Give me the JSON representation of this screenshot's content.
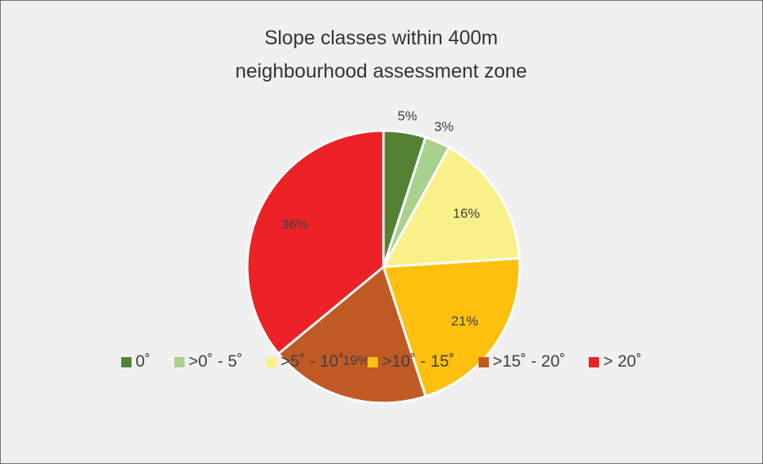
{
  "chart_data": {
    "type": "pie",
    "title": "Slope classes within 400m neighbourhood assessment zone",
    "categories": [
      "0˚",
      ">0˚ - 5˚",
      ">5˚ - 10˚",
      ">10˚ - 15˚",
      ">15˚ - 20˚",
      "> 20˚"
    ],
    "values": [
      5,
      3,
      16,
      21,
      19,
      36
    ],
    "value_labels": [
      "5%",
      "3%",
      "16%",
      "21%",
      "19%",
      "36%"
    ],
    "colors": [
      "#548235",
      "#a9d18e",
      "#f9f08a",
      "#fdc00f",
      "#c05a25",
      "#ec2227"
    ],
    "legend": "bottom"
  }
}
